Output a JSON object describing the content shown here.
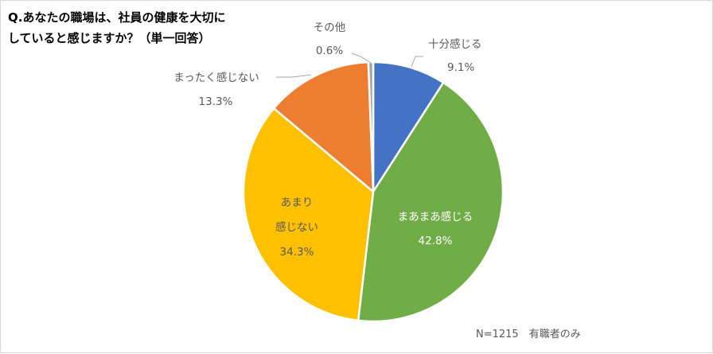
{
  "chart_data": {
    "type": "pie",
    "title_lines": [
      "Q.あなたの職場は、社員の健康を大切に",
      "していると感じますか？（単一回答）"
    ],
    "slices": [
      {
        "name": "十分感じる",
        "value": 9.1,
        "value_label": "9.1%",
        "color": "#4472C4"
      },
      {
        "name": "まあまあ感じる",
        "value": 42.8,
        "value_label": "42.8%",
        "color": "#70AD47"
      },
      {
        "name": "あまり感じない",
        "label_lines": [
          "あまり",
          "感じない"
        ],
        "value": 34.3,
        "value_label": "34.3%",
        "color": "#FFC000"
      },
      {
        "name": "まったく感じない",
        "value": 13.3,
        "value_label": "13.3%",
        "color": "#ED7D31"
      },
      {
        "name": "その他",
        "value": 0.6,
        "value_label": "0.6%",
        "color": "#A5A5A5"
      }
    ],
    "start_angle": "12 o'clock",
    "direction": "clockwise",
    "legend": "none",
    "note": "N=1215　有職者のみ"
  }
}
